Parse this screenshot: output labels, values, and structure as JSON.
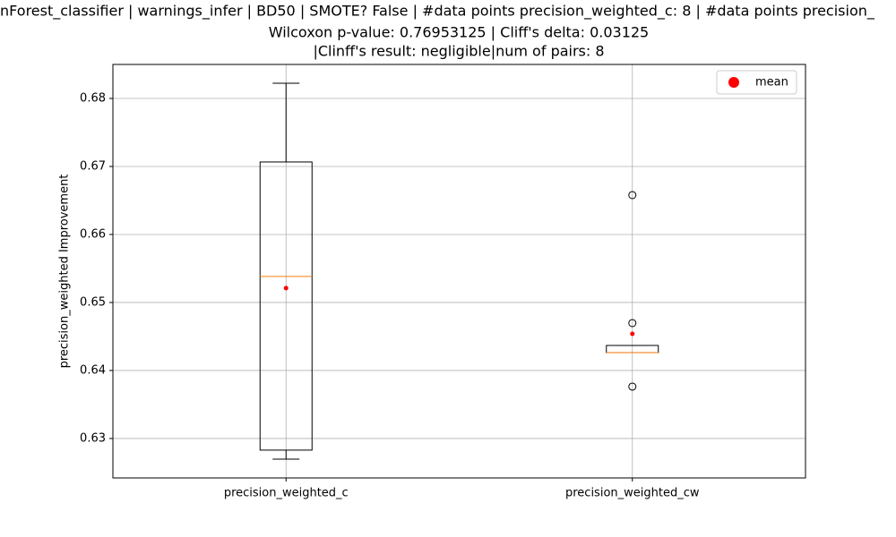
{
  "chart_data": {
    "type": "box",
    "title": "nForest_classifier | warnings_infer | BD50 | SMOTE? False | #data points precision_weighted_c: 8 | #data points precision_",
    "subtitle": [
      "Wilcoxon p-value: 0.76953125 | Cliff's delta: 0.03125",
      "|Clinff's result: negligible|num of pairs: 8"
    ],
    "y_label": "precision_weighted Improvement",
    "categories": [
      "precision_weighted_c",
      "precision_weighted_cw"
    ],
    "boxes": [
      {
        "whislo": 0.62697,
        "q1": 0.62829,
        "med": 0.65382,
        "q3": 0.67066,
        "whishi": 0.68224,
        "mean": 0.65211,
        "fliers": []
      },
      {
        "whislo": 0.64263,
        "q1": 0.64263,
        "med": 0.64263,
        "q3": 0.64368,
        "whishi": 0.64368,
        "mean": 0.64539,
        "fliers": [
          0.66579,
          0.64697,
          0.63763
        ]
      }
    ],
    "box_color": "#000000",
    "median_color": "#ff7f0e",
    "mean_color": "#ff0000",
    "legend": {
      "label": "mean",
      "position": "upper right"
    },
    "ylim": [
      0.6242,
      0.685
    ],
    "yticks": [
      0.63,
      0.64,
      0.65,
      0.66,
      0.67,
      0.68
    ],
    "grid": true
  }
}
